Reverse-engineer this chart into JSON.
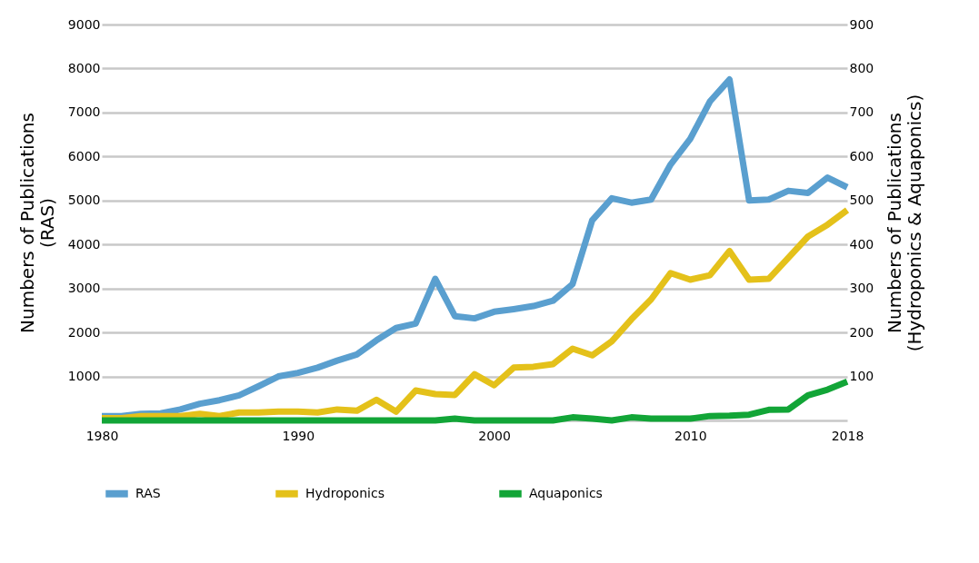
{
  "chart_data": {
    "type": "line",
    "ylabel": "Numbers of Publications\n(RAS)",
    "y2label": "Numbers of Publications\n(Hydroponics & Aquaponics)",
    "x": [
      1980,
      1981,
      1982,
      1983,
      1984,
      1985,
      1986,
      1987,
      1988,
      1989,
      1990,
      1991,
      1992,
      1993,
      1994,
      1995,
      1996,
      1997,
      1998,
      1999,
      2000,
      2001,
      2002,
      2003,
      2004,
      2005,
      2006,
      2007,
      2008,
      2009,
      2010,
      2011,
      2012,
      2013,
      2014,
      2015,
      2016,
      2017,
      2018
    ],
    "series": [
      {
        "name": "RAS",
        "color": "#5a9fcf",
        "values": [
          100,
          100,
          150,
          160,
          250,
          380,
          460,
          570,
          780,
          1000,
          1080,
          1200,
          1360,
          1500,
          1820,
          2100,
          2200,
          3220,
          2370,
          2320,
          2470,
          2530,
          2600,
          2720,
          3100,
          4550,
          5050,
          4950,
          5020,
          5820,
          6400,
          7250,
          7750,
          5000,
          5020,
          5220,
          5170,
          5520,
          5300
        ]
      },
      {
        "name": "Hydroponics",
        "color": "#e4c11a",
        "axis": "y2",
        "values": [
          5,
          5,
          10,
          10,
          10,
          15,
          10,
          18,
          18,
          20,
          20,
          18,
          25,
          22,
          47,
          20,
          68,
          60,
          58,
          105,
          80,
          120,
          122,
          128,
          163,
          148,
          180,
          230,
          275,
          335,
          320,
          330,
          385,
          320,
          322,
          370,
          418,
          445,
          478
        ]
      },
      {
        "name": "Aquaponics",
        "color": "#12a537",
        "axis": "y2",
        "values": [
          0,
          0,
          0,
          0,
          0,
          0,
          0,
          0,
          0,
          0,
          0,
          0,
          0,
          0,
          0,
          0,
          0,
          0,
          4,
          0,
          0,
          0,
          0,
          0,
          7,
          4,
          0,
          7,
          4,
          4,
          4,
          10,
          11,
          13,
          24,
          25,
          57,
          70,
          88
        ]
      }
    ],
    "xlim": [
      1980,
      2018
    ],
    "xticks": [
      1980,
      1990,
      2000,
      2010,
      2018
    ],
    "ylim": [
      0,
      9000
    ],
    "yticks": [
      {
        "value": 0,
        "label": null
      },
      1000,
      2000,
      3000,
      4000,
      5000,
      6000,
      7000,
      8000,
      9000
    ],
    "y2lim": [
      0,
      900
    ],
    "y2ticks": [
      100,
      200,
      300,
      400,
      500,
      600,
      700,
      800,
      900
    ],
    "grid": "y",
    "legend": "bottom",
    "marker": "none",
    "line_style": "solid"
  }
}
